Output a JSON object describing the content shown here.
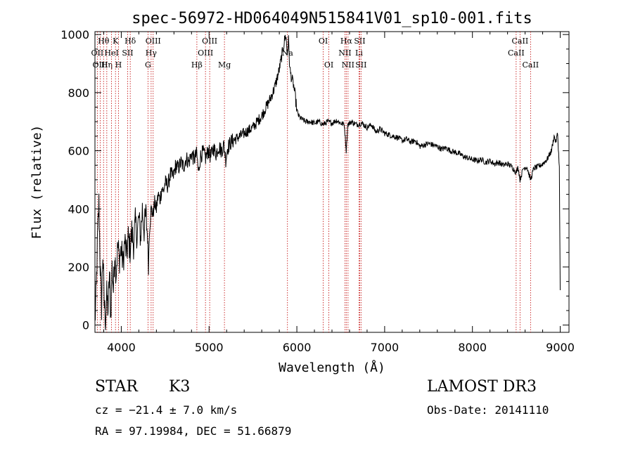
{
  "chart_data": {
    "type": "line",
    "title": "spec-56972-HD064049N515841V01_sp10-001.fits",
    "xlabel": "Wavelength (Å)",
    "ylabel": "Flux (relative)",
    "xlim": [
      3700,
      9100
    ],
    "ylim": [
      -25,
      1010
    ],
    "x_ticks": [
      4000,
      5000,
      6000,
      7000,
      8000,
      9000
    ],
    "y_ticks": [
      0,
      200,
      400,
      600,
      800,
      1000
    ],
    "series": [
      {
        "name": "spectrum",
        "points": [
          [
            3700,
            10
          ],
          [
            3715,
            120
          ],
          [
            3730,
            300
          ],
          [
            3745,
            420
          ],
          [
            3760,
            200
          ],
          [
            3775,
            60
          ],
          [
            3790,
            250
          ],
          [
            3805,
            80
          ],
          [
            3820,
            20
          ],
          [
            3835,
            100
          ],
          [
            3850,
            50
          ],
          [
            3865,
            180
          ],
          [
            3880,
            30
          ],
          [
            3895,
            200
          ],
          [
            3910,
            120
          ],
          [
            3925,
            250
          ],
          [
            3940,
            180
          ],
          [
            3960,
            270
          ],
          [
            3980,
            230
          ],
          [
            4000,
            260
          ],
          [
            4020,
            210
          ],
          [
            4040,
            290
          ],
          [
            4060,
            240
          ],
          [
            4080,
            300
          ],
          [
            4100,
            260
          ],
          [
            4120,
            320
          ],
          [
            4140,
            280
          ],
          [
            4160,
            350
          ],
          [
            4180,
            310
          ],
          [
            4200,
            370
          ],
          [
            4220,
            300
          ],
          [
            4240,
            400
          ],
          [
            4260,
            330
          ],
          [
            4280,
            380
          ],
          [
            4300,
            300
          ],
          [
            4310,
            200
          ],
          [
            4320,
            330
          ],
          [
            4340,
            400
          ],
          [
            4360,
            380
          ],
          [
            4380,
            420
          ],
          [
            4400,
            400
          ],
          [
            4420,
            450
          ],
          [
            4440,
            430
          ],
          [
            4460,
            470
          ],
          [
            4480,
            460
          ],
          [
            4500,
            490
          ],
          [
            4530,
            480
          ],
          [
            4560,
            520
          ],
          [
            4590,
            510
          ],
          [
            4620,
            550
          ],
          [
            4650,
            540
          ],
          [
            4680,
            560
          ],
          [
            4710,
            545
          ],
          [
            4740,
            575
          ],
          [
            4770,
            560
          ],
          [
            4800,
            590
          ],
          [
            4830,
            570
          ],
          [
            4860,
            590
          ],
          [
            4880,
            520
          ],
          [
            4900,
            580
          ],
          [
            4930,
            595
          ],
          [
            4960,
            575
          ],
          [
            4990,
            600
          ],
          [
            5020,
            580
          ],
          [
            5050,
            610
          ],
          [
            5080,
            590
          ],
          [
            5110,
            615
          ],
          [
            5140,
            600
          ],
          [
            5170,
            620
          ],
          [
            5190,
            570
          ],
          [
            5210,
            610
          ],
          [
            5250,
            630
          ],
          [
            5300,
            640
          ],
          [
            5350,
            650
          ],
          [
            5400,
            660
          ],
          [
            5450,
            670
          ],
          [
            5500,
            680
          ],
          [
            5550,
            700
          ],
          [
            5600,
            720
          ],
          [
            5650,
            750
          ],
          [
            5700,
            780
          ],
          [
            5750,
            820
          ],
          [
            5800,
            880
          ],
          [
            5830,
            930
          ],
          [
            5860,
            980
          ],
          [
            5875,
            1000
          ],
          [
            5890,
            930
          ],
          [
            5905,
            980
          ],
          [
            5920,
            880
          ],
          [
            5940,
            850
          ],
          [
            5960,
            830
          ],
          [
            5980,
            790
          ],
          [
            6000,
            740
          ],
          [
            6020,
            720
          ],
          [
            6050,
            710
          ],
          [
            6100,
            700
          ],
          [
            6150,
            700
          ],
          [
            6200,
            695
          ],
          [
            6250,
            700
          ],
          [
            6300,
            690
          ],
          [
            6350,
            700
          ],
          [
            6400,
            695
          ],
          [
            6450,
            705
          ],
          [
            6500,
            695
          ],
          [
            6540,
            690
          ],
          [
            6563,
            600
          ],
          [
            6580,
            690
          ],
          [
            6620,
            700
          ],
          [
            6680,
            690
          ],
          [
            6740,
            695
          ],
          [
            6800,
            680
          ],
          [
            6850,
            690
          ],
          [
            6900,
            665
          ],
          [
            6950,
            675
          ],
          [
            7000,
            660
          ],
          [
            7050,
            655
          ],
          [
            7100,
            650
          ],
          [
            7150,
            645
          ],
          [
            7200,
            635
          ],
          [
            7250,
            640
          ],
          [
            7300,
            630
          ],
          [
            7350,
            635
          ],
          [
            7400,
            615
          ],
          [
            7450,
            620
          ],
          [
            7500,
            625
          ],
          [
            7550,
            620
          ],
          [
            7600,
            615
          ],
          [
            7650,
            605
          ],
          [
            7700,
            610
          ],
          [
            7750,
            600
          ],
          [
            7800,
            595
          ],
          [
            7850,
            590
          ],
          [
            7900,
            580
          ],
          [
            7950,
            575
          ],
          [
            8000,
            570
          ],
          [
            8050,
            565
          ],
          [
            8100,
            570
          ],
          [
            8150,
            560
          ],
          [
            8200,
            565
          ],
          [
            8250,
            555
          ],
          [
            8300,
            560
          ],
          [
            8350,
            550
          ],
          [
            8400,
            555
          ],
          [
            8450,
            545
          ],
          [
            8498,
            525
          ],
          [
            8520,
            545
          ],
          [
            8542,
            500
          ],
          [
            8580,
            540
          ],
          [
            8620,
            545
          ],
          [
            8662,
            500
          ],
          [
            8700,
            540
          ],
          [
            8750,
            545
          ],
          [
            8800,
            555
          ],
          [
            8850,
            570
          ],
          [
            8900,
            600
          ],
          [
            8930,
            650
          ],
          [
            8950,
            630
          ],
          [
            8970,
            660
          ],
          [
            8990,
            540
          ],
          [
            9000,
            120
          ]
        ]
      }
    ],
    "lines": [
      {
        "name": "Hθ",
        "wl": 3798,
        "row": 1
      },
      {
        "name": "OII",
        "wl": 3727,
        "row": 2
      },
      {
        "name": "OIII",
        "wl": 3760,
        "row": 3
      },
      {
        "name": "Hη",
        "wl": 3835,
        "row": 3
      },
      {
        "name": "K",
        "wl": 3934,
        "row": 1
      },
      {
        "name": "HeI",
        "wl": 3889,
        "row": 2
      },
      {
        "name": "SII",
        "wl": 4072,
        "row": 2
      },
      {
        "name": "H",
        "wl": 3968,
        "row": 3
      },
      {
        "name": "Hδ",
        "wl": 4102,
        "row": 1
      },
      {
        "name": "OIII",
        "wl": 4363,
        "row": 1
      },
      {
        "name": "Hγ",
        "wl": 4340,
        "row": 2
      },
      {
        "name": "G",
        "wl": 4304,
        "row": 3
      },
      {
        "name": "OIII",
        "wl": 5007,
        "row": 1
      },
      {
        "name": "OIII",
        "wl": 4959,
        "row": 2
      },
      {
        "name": "Hβ",
        "wl": 4861,
        "row": 3
      },
      {
        "name": "Mg",
        "wl": 5175,
        "row": 3
      },
      {
        "name": "Na",
        "wl": 5893,
        "row": 2
      },
      {
        "name": "OI",
        "wl": 6300,
        "row": 1
      },
      {
        "name": "OI",
        "wl": 6364,
        "row": 3
      },
      {
        "name": "Hα",
        "wl": 6563,
        "row": 1
      },
      {
        "name": "SII",
        "wl": 6716,
        "row": 1
      },
      {
        "name": "NII",
        "wl": 6548,
        "row": 2
      },
      {
        "name": "Li",
        "wl": 6708,
        "row": 2
      },
      {
        "name": "NII",
        "wl": 6583,
        "row": 3
      },
      {
        "name": "SII",
        "wl": 6731,
        "row": 3
      },
      {
        "name": "CaII",
        "wl": 8542,
        "row": 1
      },
      {
        "name": "CaII",
        "wl": 8498,
        "row": 2
      },
      {
        "name": "CaII",
        "wl": 8662,
        "row": 3
      }
    ],
    "line_color": "#c00000"
  },
  "info": {
    "class_label": "STAR",
    "subclass": "K3",
    "cz": "cz = −21.4 ± 7.0 km/s",
    "coords": "RA =  97.19984, DEC =  51.66879",
    "survey": "LAMOST DR3",
    "obs_date": "Obs-Date: 20141110"
  }
}
